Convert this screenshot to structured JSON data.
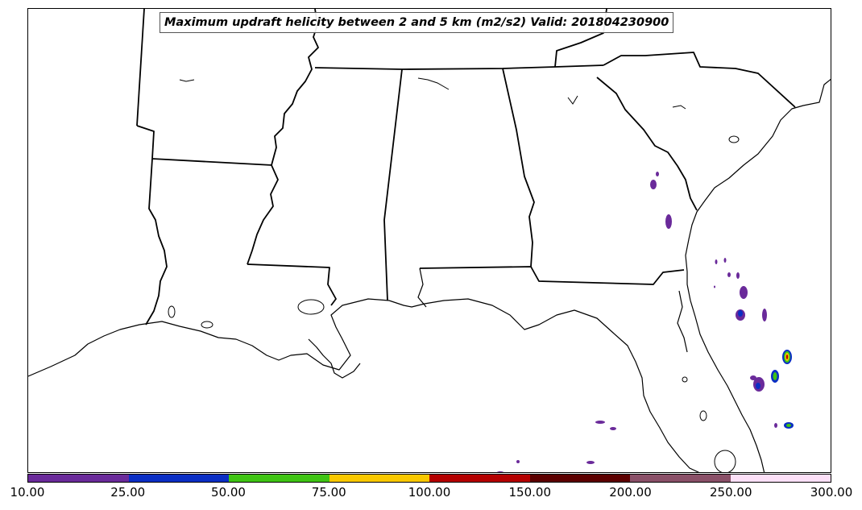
{
  "title": "Maximum updraft helicity between 2 and 5 km (m2/s2) Valid: 201804230900",
  "colorbar": {
    "colors": [
      "#6a2a9a",
      "#0a2ec4",
      "#3fc414",
      "#f9c800",
      "#b40000",
      "#5c0000",
      "#8a5068",
      "#fde0f8"
    ],
    "tick_labels": [
      "10.00",
      "25.00",
      "50.00",
      "75.00",
      "100.00",
      "150.00",
      "200.00",
      "250.00",
      "300.00"
    ]
  },
  "map": {
    "region": "Southeastern United States",
    "outline_color": "#000000",
    "background": "#ffffff",
    "features": [
      "state-borders",
      "coastline",
      "lakes",
      "updraft-helicity-cells"
    ]
  }
}
